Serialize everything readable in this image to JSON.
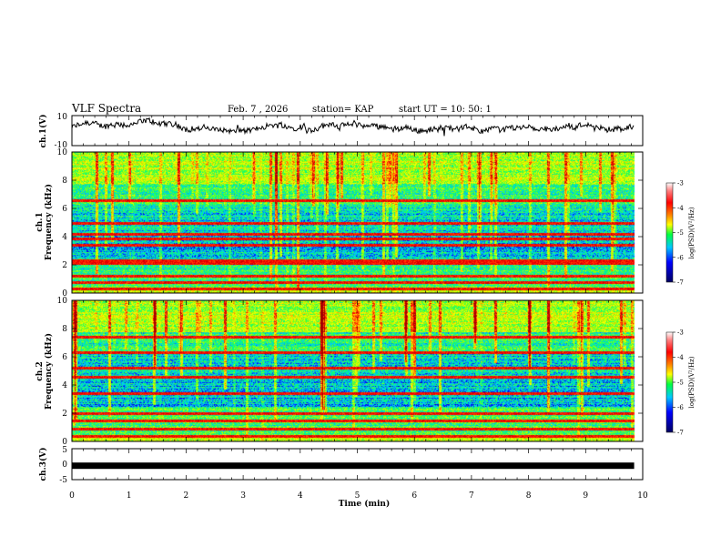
{
  "header": {
    "title": "VLF Spectra",
    "date": "Feb. 7 , 2026",
    "station": "station= KAP",
    "start": "start UT =  10: 50: 1"
  },
  "chart_data": [
    {
      "type": "line",
      "name": "ch1-waveform",
      "ylabel": "ch.1(V)",
      "ylim": [
        -10,
        10
      ],
      "yticks": [
        "10",
        "-10"
      ],
      "x_range_min": [
        0,
        9.85
      ],
      "baseline_v": 2,
      "amplitude_v": 3.5
    },
    {
      "type": "heatmap",
      "name": "ch1-spectrogram",
      "ylabel": "ch.1",
      "ylabel2": "Frequency (kHz)",
      "ylim_khz": [
        0,
        10
      ],
      "yticks": [
        "0",
        "2",
        "4",
        "6",
        "8",
        "10"
      ],
      "x_range_min": [
        0,
        9.85
      ],
      "lines_khz": [
        0.3,
        0.8,
        1.2,
        2.1,
        2.3,
        3.4,
        3.9,
        4.2,
        5.0,
        6.6
      ],
      "colorbar": {
        "label": "log(PSD)(V²/Hz)",
        "range": [
          -7,
          -3
        ],
        "ticks": [
          "-3",
          "-4",
          "-5",
          "-6",
          "-7"
        ]
      }
    },
    {
      "type": "heatmap",
      "name": "ch2-spectrogram",
      "ylabel": "ch.2",
      "ylabel2": "Frequency (kHz)",
      "ylim_khz": [
        0,
        10
      ],
      "yticks": [
        "0",
        "2",
        "4",
        "6",
        "8",
        "10"
      ],
      "x_range_min": [
        0,
        9.85
      ],
      "lines_khz": [
        0.4,
        0.9,
        1.5,
        2.0,
        3.4,
        4.6,
        5.2,
        6.3,
        7.4
      ],
      "colorbar": {
        "label": "log(PSD)(V²/Hz)",
        "range": [
          -7,
          -3
        ],
        "ticks": [
          "-3",
          "-4",
          "-5",
          "-6",
          "-7"
        ]
      }
    },
    {
      "type": "line",
      "name": "ch3-waveform",
      "ylabel": "ch.3(V)",
      "ylim": [
        -5,
        5
      ],
      "yticks": [
        "5",
        "0",
        "-5"
      ],
      "x_range_min": [
        0,
        9.85
      ],
      "level_v": -0.5
    }
  ],
  "xaxis": {
    "label": "Time (min)",
    "range": [
      0,
      10
    ],
    "ticks": [
      "0",
      "1",
      "2",
      "3",
      "4",
      "5",
      "6",
      "7",
      "8",
      "9",
      "10"
    ]
  },
  "colors": {
    "frame": "#000000",
    "trace": "#000000",
    "colormap": [
      "#000080",
      "#0000ff",
      "#00c8ff",
      "#00ff80",
      "#c8ff00",
      "#ffff00",
      "#ff8000",
      "#ff0000",
      "#800000"
    ]
  }
}
